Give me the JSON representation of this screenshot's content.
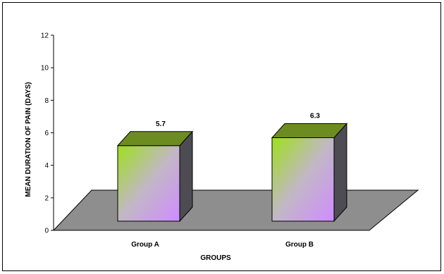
{
  "chart_data": {
    "type": "bar",
    "style": "3d-column",
    "categories": [
      "Group A",
      "Group B"
    ],
    "values": [
      5.7,
      6.3
    ],
    "data_labels": [
      "5.7",
      "6.3"
    ],
    "xlabel": "GROUPS",
    "ylabel": "MEAN DURATION OF PAIN (DAYS)",
    "ylim": [
      0,
      12
    ],
    "yticks": [
      "0",
      "2",
      "4",
      "6",
      "8",
      "10",
      "12"
    ],
    "grid": false,
    "legend": "none",
    "colors": {
      "bar_gradient_start": "#9ee01c",
      "bar_gradient_mid": "#c2b7c6",
      "bar_gradient_end": "#cf8cff",
      "bar_top": "#6c8c22",
      "bar_side": "#4c4c52",
      "floor": "#8e8e8e",
      "outline": "#000000"
    }
  }
}
